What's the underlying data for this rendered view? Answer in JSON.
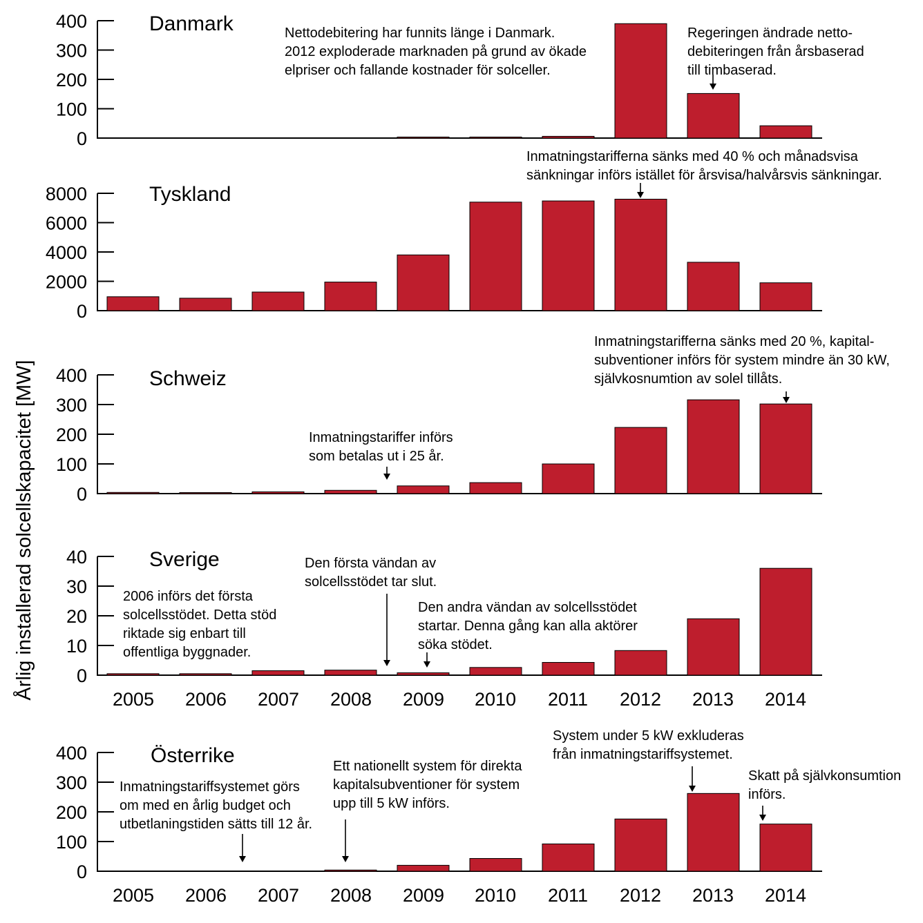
{
  "chart_data": {
    "type": "bar",
    "ylabel": "Årlig installerad solcellskapacitet [MW]",
    "categories": [
      "2005",
      "2006",
      "2007",
      "2008",
      "2009",
      "2010",
      "2011",
      "2012",
      "2013",
      "2014"
    ],
    "bar_color": "#be1e2d",
    "panels": [
      {
        "title": "Danmark",
        "ylim": [
          0,
          400
        ],
        "yticks": [
          "400",
          "300",
          "200",
          "100",
          "0"
        ],
        "show_xticks": false,
        "values": [
          0,
          0,
          0,
          0,
          1,
          1,
          6,
          390,
          152,
          42
        ],
        "annotations": [
          {
            "lines": [
              "Nettodebitering har funnits länge i Danmark.",
              "2012 exploderade marknaden på grund av ökade",
              "elpriser och fallande kostnader för solceller."
            ]
          },
          {
            "lines": [
              "Regeringen ändrade netto-",
              "debiteringen från årsbaserad",
              "till timbaserad."
            ]
          }
        ]
      },
      {
        "title": "Tyskland",
        "ylim": [
          0,
          8000
        ],
        "yticks": [
          "8000",
          "6000",
          "4000",
          "2000",
          "0"
        ],
        "show_xticks": false,
        "values": [
          950,
          850,
          1270,
          1950,
          3800,
          7400,
          7480,
          7600,
          3300,
          1900
        ],
        "annotations": [
          {
            "lines": [
              "Inmatningstarifferna sänks med 40 % och månadsvisa",
              "sänkningar införs istället för årsvisa/halvårsvis sänkningar."
            ]
          }
        ]
      },
      {
        "title": "Schweiz",
        "ylim": [
          0,
          400
        ],
        "yticks": [
          "400",
          "300",
          "200",
          "100",
          "0"
        ],
        "show_xticks": false,
        "values": [
          4,
          2,
          6,
          11,
          26,
          37,
          100,
          223,
          316,
          302
        ],
        "annotations": [
          {
            "lines": [
              "Inmatningstariffer införs",
              "som betalas ut i 25 år."
            ]
          },
          {
            "lines": [
              "Inmatningstarifferna sänks med 20 %, kapital-",
              "subventioner införs för system mindre än 30 kW,",
              "självkosnumtion av solel tillåts."
            ]
          }
        ]
      },
      {
        "title": "Sverige",
        "ylim": [
          0,
          40
        ],
        "yticks": [
          "40",
          "30",
          "20",
          "10",
          "0"
        ],
        "show_xticks": true,
        "values": [
          0.5,
          0.5,
          1.5,
          1.7,
          0.8,
          2.6,
          4.3,
          8.3,
          19,
          36
        ],
        "annotations": [
          {
            "lines": [
              "2006 införs det första",
              "solcellsstödet. Detta stöd",
              "riktade sig enbart till",
              "offentliga byggnader."
            ]
          },
          {
            "lines": [
              "Den första vändan av",
              "solcellsstödet tar slut."
            ]
          },
          {
            "lines": [
              "Den andra vändan av solcellsstödet",
              "startar. Denna gång kan alla aktörer",
              "söka stödet."
            ]
          }
        ]
      },
      {
        "title": "Österrike",
        "ylim": [
          0,
          400
        ],
        "yticks": [
          "400",
          "300",
          "200",
          "100",
          "0"
        ],
        "show_xticks": true,
        "values": [
          0,
          0,
          0,
          4,
          20,
          43,
          92,
          176,
          262,
          159
        ],
        "annotations": [
          {
            "lines": [
              "Inmatningstariffsystemet görs",
              "om med en årlig budget och",
              "utbetlaningstiden sätts till 12 år."
            ]
          },
          {
            "lines": [
              "Ett nationellt system för direkta",
              "kapitalsubventioner för system",
              "upp till 5 kW införs."
            ]
          },
          {
            "lines": [
              "System under 5 kW exkluderas",
              "från inmatningstariffsystemet."
            ]
          },
          {
            "lines": [
              "Skatt på självkonsumtion",
              "införs."
            ]
          }
        ]
      }
    ]
  }
}
